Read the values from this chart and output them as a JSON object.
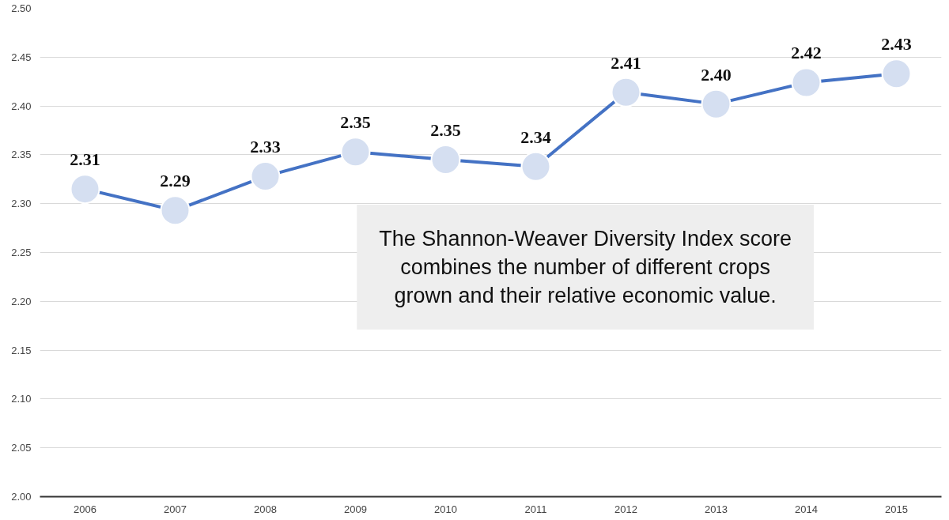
{
  "chart_data": {
    "type": "line",
    "categories": [
      "2006",
      "2007",
      "2008",
      "2009",
      "2010",
      "2011",
      "2012",
      "2013",
      "2014",
      "2015"
    ],
    "series": [
      {
        "color": "#4472c4",
        "values": [
          2.315,
          2.293,
          2.328,
          2.353,
          2.345,
          2.338,
          2.414,
          2.402,
          2.424,
          2.433
        ],
        "value_labels": [
          "2.31",
          "2.29",
          "2.33",
          "2.35",
          "2.35",
          "2.34",
          "2.41",
          "2.40",
          "2.42",
          "2.43"
        ]
      }
    ],
    "ylim": [
      2.0,
      2.5
    ],
    "yticks": [
      {
        "value": 2.0,
        "label": "2.00"
      },
      {
        "value": 2.05,
        "label": "2.05"
      },
      {
        "value": 2.1,
        "label": "2.10"
      },
      {
        "value": 2.15,
        "label": "2.15"
      },
      {
        "value": 2.2,
        "label": "2.20"
      },
      {
        "value": 2.25,
        "label": "2.25"
      },
      {
        "value": 2.3,
        "label": "2.30"
      },
      {
        "value": 2.35,
        "label": "2.35"
      },
      {
        "value": 2.4,
        "label": "2.40"
      },
      {
        "value": 2.45,
        "label": "2.45"
      },
      {
        "value": 2.5,
        "label": "2.50"
      }
    ],
    "grid": "y",
    "marker": "circle",
    "line_style": "solid",
    "annotations": [
      "The Shannon-Weaver Diversity Index score combines the number of different crops grown and their relative economic value."
    ]
  }
}
